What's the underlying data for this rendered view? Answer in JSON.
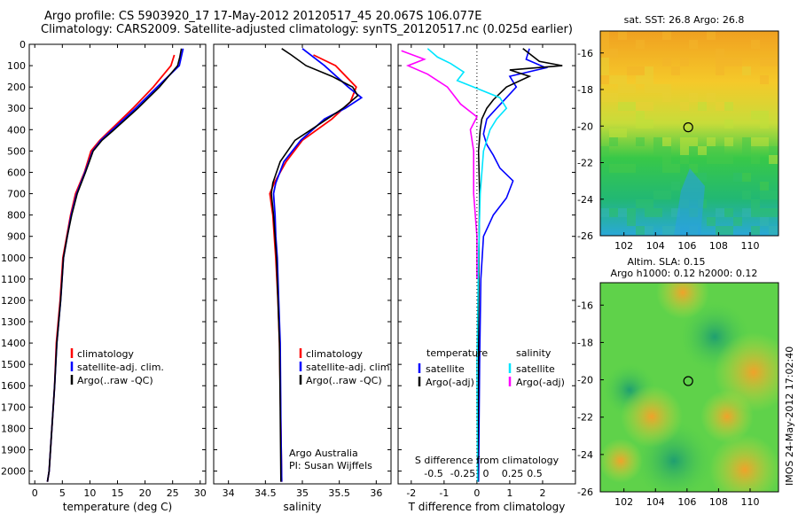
{
  "header": {
    "line1": "Argo profile: CS 5903920_17 17-May-2012 20120517_45 20.067S 106.077E",
    "line2": "Climatology: CARS2009. Satellite-adjusted climatology: synTS_20120517.nc (0.025d earlier)"
  },
  "colors": {
    "climatology": "#ff0000",
    "satellite": "#0000ff",
    "argo": "#000000",
    "sat_salinity": "#00e5ff",
    "argo_salinity": "#ff00ff"
  },
  "chart_data": [
    {
      "type": "line",
      "xlabel": "temperature (deg C)",
      "xlim": [
        -1,
        31
      ],
      "xticks": [
        0,
        5,
        10,
        15,
        20,
        25,
        30
      ],
      "ylim": [
        2080,
        0
      ],
      "yticks": [
        0,
        100,
        200,
        300,
        400,
        500,
        600,
        700,
        800,
        900,
        1000,
        1100,
        1200,
        1300,
        1400,
        1500,
        1600,
        1700,
        1800,
        1900,
        2000
      ],
      "legend": [
        "climatology",
        "satellite-adj. clim.",
        "Argo(..raw -QC)"
      ],
      "series": [
        {
          "name": "climatology",
          "color": "#ff0000",
          "x": [
            25.3,
            24.7,
            21.5,
            17.8,
            13.8,
            11.8,
            10.2,
            9.0,
            7.4,
            6.5,
            5.8,
            5.1,
            4.6,
            3.9,
            3.6,
            3.1,
            2.6,
            2.3
          ],
          "y": [
            50,
            100,
            200,
            300,
            400,
            450,
            500,
            600,
            700,
            800,
            900,
            1000,
            1200,
            1400,
            1600,
            1800,
            2000,
            2050
          ]
        },
        {
          "name": "satellite-adj. clim.",
          "color": "#0000ff",
          "x": [
            26.9,
            26.2,
            22.2,
            18.3,
            14.1,
            12.0,
            10.5,
            9.1,
            7.6,
            6.6,
            5.9,
            5.2,
            4.7,
            4.0,
            3.6,
            3.1,
            2.6,
            2.3
          ],
          "y": [
            20,
            100,
            200,
            300,
            400,
            450,
            500,
            600,
            700,
            800,
            900,
            1000,
            1200,
            1400,
            1600,
            1800,
            2000,
            2050
          ]
        },
        {
          "name": "Argo(..raw -QC)",
          "color": "#000000",
          "x": [
            26.6,
            26.3,
            25.9,
            22.6,
            18.7,
            14.4,
            12.2,
            10.6,
            9.2,
            7.7,
            6.7,
            5.9,
            5.2,
            4.7,
            4.0,
            3.6,
            3.1,
            2.6,
            2.3
          ],
          "y": [
            20,
            60,
            100,
            200,
            300,
            400,
            450,
            500,
            600,
            700,
            800,
            900,
            1000,
            1200,
            1400,
            1600,
            1800,
            2000,
            2050
          ]
        }
      ]
    },
    {
      "type": "line",
      "xlabel": "salinity",
      "xlim": [
        33.8,
        36.2
      ],
      "xticks": [
        34,
        34.5,
        35,
        35.5,
        36
      ],
      "ylim": [
        2080,
        0
      ],
      "legend": [
        "climatology",
        "satellite-adj. clim.",
        "Argo(..raw -QC)"
      ],
      "annotation": [
        "Argo Australia",
        "PI: Susan Wijffels"
      ],
      "series": [
        {
          "name": "climatology",
          "color": "#ff0000",
          "x": [
            35.15,
            35.45,
            35.73,
            35.65,
            35.4,
            35.0,
            34.78,
            34.62,
            34.56,
            34.6,
            34.62,
            34.64,
            34.67,
            34.69,
            34.7,
            34.71,
            34.72
          ],
          "y": [
            50,
            100,
            200,
            270,
            350,
            450,
            550,
            650,
            700,
            800,
            900,
            1000,
            1200,
            1400,
            1600,
            1800,
            2050
          ]
        },
        {
          "name": "satellite-adj. clim.",
          "color": "#0000ff",
          "x": [
            35.0,
            35.3,
            35.62,
            35.8,
            35.58,
            35.3,
            34.98,
            34.75,
            34.64,
            34.61,
            34.63,
            34.64,
            34.66,
            34.68,
            34.7,
            34.71,
            34.72
          ],
          "y": [
            20,
            100,
            200,
            250,
            300,
            350,
            450,
            550,
            650,
            700,
            800,
            900,
            1000,
            1200,
            1400,
            1800,
            2050
          ]
        },
        {
          "name": "Argo(..raw -QC)",
          "color": "#000000",
          "x": [
            34.72,
            34.85,
            35.05,
            35.4,
            35.68,
            35.75,
            35.55,
            35.25,
            34.9,
            34.7,
            34.6,
            34.58,
            34.61,
            34.63,
            34.65,
            34.67,
            34.69,
            34.7,
            34.71
          ],
          "y": [
            20,
            50,
            100,
            150,
            200,
            240,
            300,
            370,
            450,
            550,
            650,
            700,
            800,
            900,
            1000,
            1200,
            1400,
            1700,
            2050
          ]
        }
      ]
    },
    {
      "type": "line",
      "xlabel_top": "S difference from climatology",
      "xlabel": "T difference from climatology",
      "xlim": [
        -2.4,
        3.0
      ],
      "xticks": [
        -2,
        -1,
        0,
        1,
        2
      ],
      "xticks_top": [
        -0.5,
        -0.25,
        0,
        0.25,
        0.5
      ],
      "ylim": [
        2080,
        0
      ],
      "legend_left": {
        "title": "temperature",
        "items": [
          "satellite",
          "Argo(-adj)"
        ]
      },
      "legend_right": {
        "title": "salinity",
        "items": [
          "satellite",
          "Argo(-adj)"
        ]
      },
      "series": [
        {
          "name": "temperature satellite",
          "color": "#0000ff",
          "x": [
            1.6,
            1.5,
            2.1,
            1.0,
            1.2,
            0.9,
            0.6,
            0.3,
            0.2,
            0.3,
            0.5,
            0.7,
            1.1,
            0.9,
            0.5,
            0.2,
            0.12,
            0.08,
            0.05
          ],
          "y": [
            20,
            70,
            110,
            150,
            200,
            250,
            300,
            350,
            420,
            470,
            520,
            580,
            640,
            720,
            800,
            900,
            1100,
            1500,
            2050
          ]
        },
        {
          "name": "temperature Argo(-adj)",
          "color": "#000000",
          "x": [
            1.4,
            1.9,
            2.6,
            1.0,
            1.6,
            0.9,
            0.5,
            0.3,
            0.15,
            0.1,
            0.05,
            0.08,
            0.06,
            0.05,
            0.03
          ],
          "y": [
            20,
            80,
            100,
            120,
            150,
            200,
            260,
            300,
            350,
            400,
            500,
            700,
            1000,
            1500,
            2050
          ]
        },
        {
          "name": "salinity satellite",
          "color": "#00e5ff",
          "x": [
            -1.5,
            -1.2,
            -0.8,
            -0.4,
            -0.6,
            -0.1,
            0.7,
            0.9,
            0.6,
            0.4,
            0.2,
            0.1,
            0.05,
            0.0,
            0.02
          ],
          "y": [
            20,
            60,
            90,
            130,
            170,
            200,
            250,
            300,
            350,
            400,
            500,
            700,
            1000,
            1500,
            2050
          ]
        },
        {
          "name": "salinity Argo(-adj)",
          "color": "#ff00ff",
          "x": [
            -2.3,
            -1.6,
            -2.1,
            -1.5,
            -0.9,
            -0.5,
            0.0,
            -0.2,
            -0.1,
            -0.1,
            0.0,
            0.0
          ],
          "y": [
            30,
            70,
            100,
            140,
            200,
            280,
            340,
            400,
            500,
            700,
            900,
            1100
          ]
        }
      ]
    },
    {
      "type": "heatmap",
      "title": "sat. SST: 26.8 Argo: 26.8",
      "xlim": [
        100.5,
        111.8
      ],
      "ylim": [
        -26,
        -14.8
      ],
      "xticks": [
        102,
        104,
        106,
        108,
        110
      ],
      "yticks": [
        -16,
        -18,
        -20,
        -22,
        -24,
        -26
      ],
      "marker": {
        "x": 106.077,
        "y": -20.067
      }
    },
    {
      "type": "heatmap",
      "title_lines": [
        "Altim. SLA: 0.15",
        "Argo h1000: 0.12 h2000: 0.12"
      ],
      "xlim": [
        100.5,
        111.8
      ],
      "ylim": [
        -26,
        -14.8
      ],
      "xticks": [
        102,
        104,
        106,
        108,
        110
      ],
      "yticks": [
        -16,
        -18,
        -20,
        -22,
        -24,
        -26
      ],
      "marker": {
        "x": 106.077,
        "y": -20.067
      }
    }
  ],
  "footer": {
    "stamp": "IMOS 24-May-2012 17:02:40"
  }
}
